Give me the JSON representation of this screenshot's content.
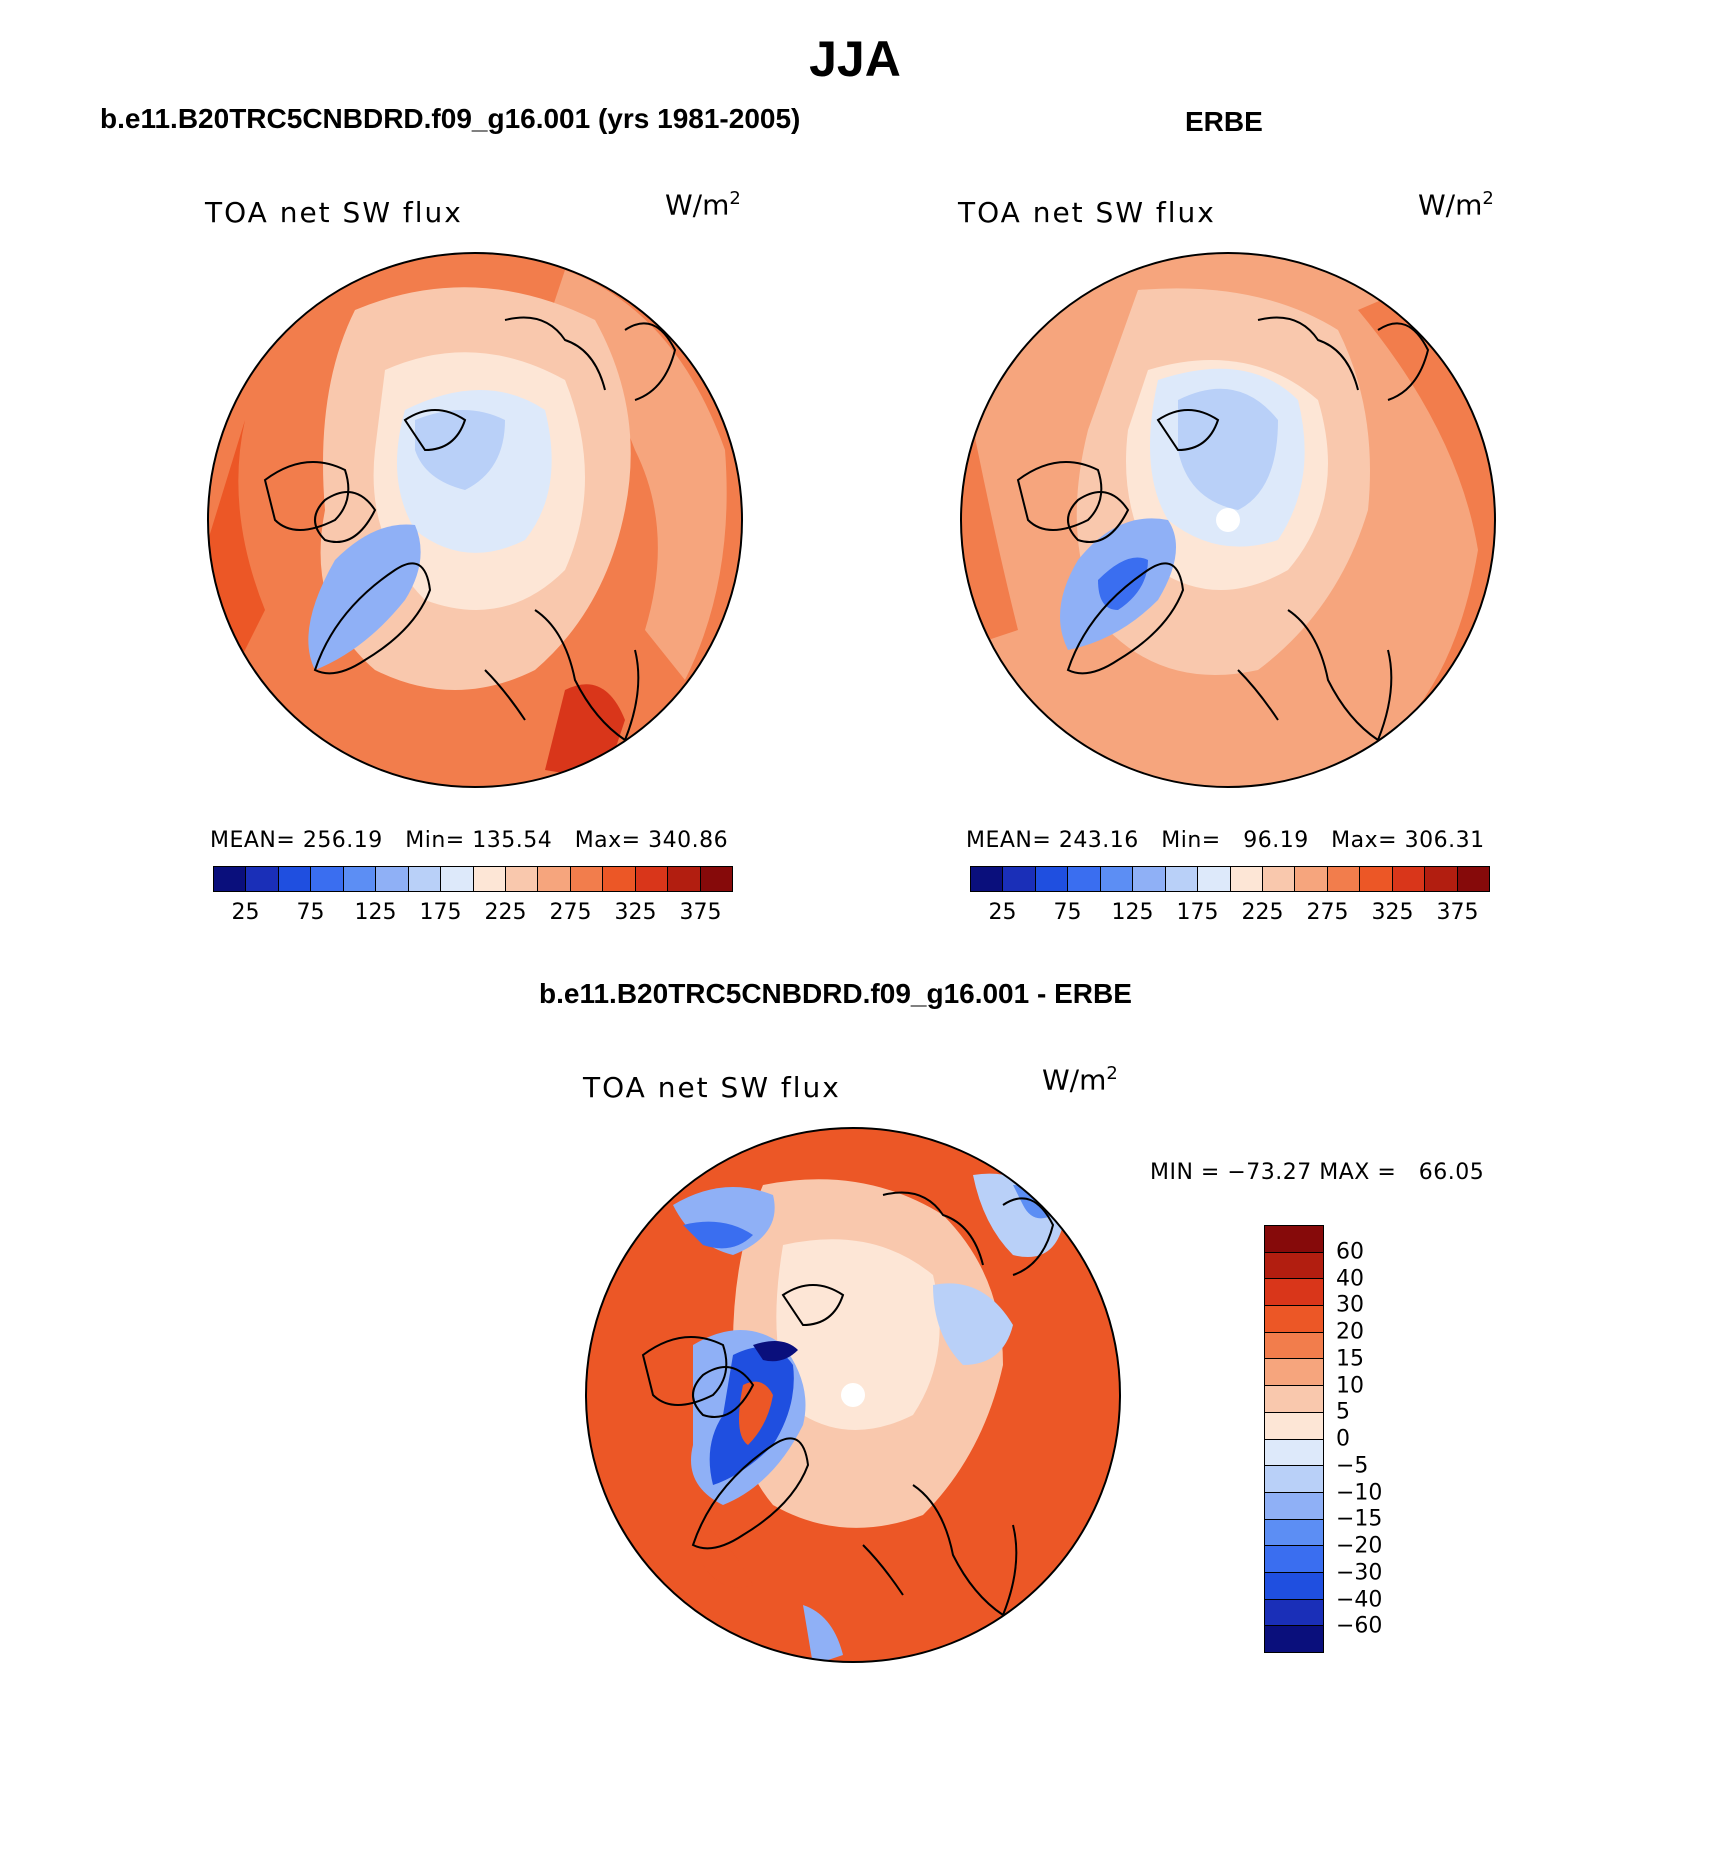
{
  "main_title": "JJA",
  "panels": {
    "model": {
      "title": "b.e11.B20TRC5CNBDRD.f09_g16.001 (yrs 1981-2005)",
      "variable": "TOA net SW flux",
      "units": "W/m",
      "units_sup": "2",
      "stats": "MEAN= 256.19   Min= 135.54   Max= 340.86",
      "colorbar_ticks": [
        "25",
        "75",
        "125",
        "175",
        "225",
        "275",
        "325",
        "375"
      ]
    },
    "obs": {
      "title": "ERBE",
      "variable": "TOA net SW flux",
      "units": "W/m",
      "units_sup": "2",
      "stats": "MEAN= 243.16   Min=   96.19   Max= 306.31",
      "colorbar_ticks": [
        "25",
        "75",
        "125",
        "175",
        "225",
        "275",
        "325",
        "375"
      ]
    },
    "diff": {
      "title": "b.e11.B20TRC5CNBDRD.f09_g16.001 - ERBE",
      "variable": "TOA net SW flux",
      "units": "W/m",
      "units_sup": "2",
      "minmax": "MIN = −73.27 MAX =   66.05",
      "colorbar_ticks": [
        "60",
        "40",
        "30",
        "20",
        "15",
        "10",
        "5",
        "0",
        "−5",
        "−10",
        "−15",
        "−20",
        "−30",
        "−40",
        "−60"
      ]
    }
  },
  "colors": {
    "abs_scale": [
      "#0a0f7c",
      "#1a2fb8",
      "#1f4fe0",
      "#3a6ef0",
      "#5c8ef4",
      "#8fb0f6",
      "#b9d0f8",
      "#dde9fa",
      "#fde6d6",
      "#f9c8ad",
      "#f6a57d",
      "#f27d4c",
      "#ec5726",
      "#d9361a",
      "#b21e10",
      "#860a0a"
    ],
    "diff_scale": [
      "#860a0a",
      "#b21e10",
      "#d9361a",
      "#ec5726",
      "#f27d4c",
      "#f6a57d",
      "#f9c8ad",
      "#fde6d6",
      "#dde9fa",
      "#b9d0f8",
      "#8fb0f6",
      "#5c8ef4",
      "#3a6ef0",
      "#1f4fe0",
      "#1a2fb8",
      "#0a0f7c"
    ]
  }
}
